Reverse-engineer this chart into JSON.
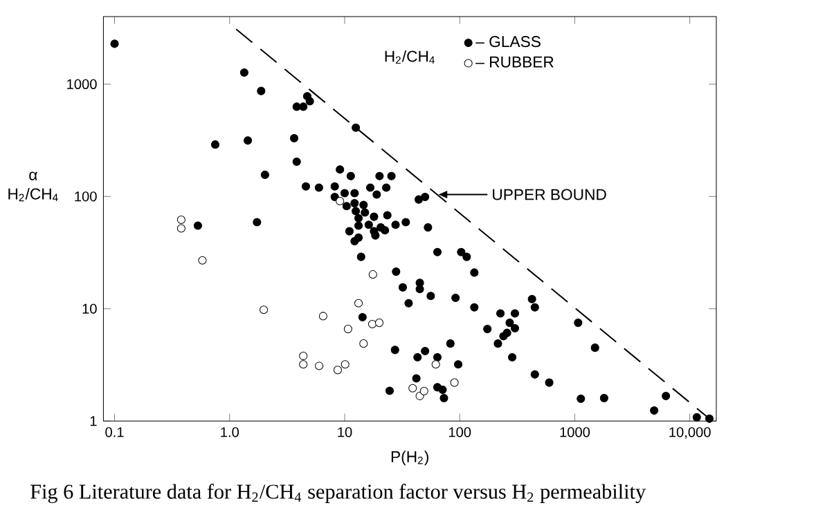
{
  "chart_data": {
    "type": "scatter",
    "xlabel": "P(H$_{2}$)",
    "ylabel": "α H$_{2}$/CH$_{4}$",
    "log": "xy",
    "marker": "circle",
    "legend": "top right",
    "xlim": [
      0.08,
      17000
    ],
    "ylim": [
      1,
      4000
    ],
    "xticks": [
      {
        "value": 0.1,
        "label": "0.1"
      },
      {
        "value": 1,
        "label": "1.0"
      },
      10,
      100,
      1000,
      {
        "value": 10000,
        "label": "10,000"
      }
    ],
    "yticks": [
      1,
      10,
      100,
      1000
    ],
    "series": [
      {
        "name": "– GLASS",
        "color": "#000000",
        "x": [
          0.1,
          1.34,
          1.88,
          0.75,
          1.44,
          2.03,
          0.53,
          1.73,
          3.83,
          4.37,
          4.73,
          4.98,
          3.64,
          3.83,
          4.6,
          5.98,
          12.5,
          8.2,
          9.1,
          11.3,
          10,
          12.2,
          8.2,
          16.7,
          20.1,
          25.5,
          23,
          19,
          12.2,
          10.4,
          14.6,
          12.5,
          15,
          13.2,
          18,
          23.5,
          11,
          13.2,
          16.2,
          18,
          20.6,
          22.4,
          18.5,
          27.7,
          34,
          13.2,
          12.2,
          13.9,
          44,
          50,
          53,
          64,
          103,
          115,
          134,
          45,
          45,
          56,
          36,
          92,
          134,
          174,
          226,
          302,
          272,
          302,
          258,
          240,
          215,
          286,
          425,
          450,
          1070,
          1500,
          450,
          600,
          1130,
          1800,
          6200,
          4900,
          11500,
          14800,
          83,
          50,
          43,
          64,
          97,
          42,
          64,
          71,
          73,
          14.3,
          24.6,
          27.4,
          28,
          32
        ],
        "values": [
          2290,
          1270,
          870,
          290,
          315,
          156,
          55,
          59,
          630,
          630,
          780,
          705,
          330,
          204,
          123,
          120,
          410,
          123,
          174,
          152,
          107,
          107,
          99,
          120,
          152,
          152,
          120,
          104,
          87,
          82,
          84,
          74,
          72,
          64,
          66,
          68,
          49,
          55,
          56,
          49,
          53,
          50,
          45,
          56,
          59,
          43,
          40,
          29,
          94,
          99,
          53,
          32,
          32,
          29,
          21,
          17,
          15,
          13,
          11.2,
          12.5,
          10.3,
          6.6,
          9.1,
          9.1,
          7.5,
          6.7,
          6.1,
          5.7,
          4.9,
          3.7,
          12.2,
          10.3,
          7.5,
          4.5,
          2.6,
          2.2,
          1.58,
          1.6,
          1.67,
          1.24,
          1.08,
          1.05,
          4.9,
          4.2,
          3.7,
          3.7,
          3.2,
          2.4,
          2.0,
          1.9,
          1.6,
          8.4,
          1.86,
          4.3,
          21.4,
          15.5
        ]
      },
      {
        "name": "– RUBBER",
        "color": "#ffffff",
        "x": [
          0.38,
          0.38,
          9.1,
          0.58,
          1.98,
          4.37,
          4.37,
          6.0,
          8.7,
          10.1,
          6.5,
          10.7,
          13.2,
          14.6,
          17.4,
          20,
          17.6,
          62,
          39,
          45,
          49,
          90
        ],
        "values": [
          62,
          52,
          91,
          27,
          9.8,
          3.8,
          3.2,
          3.1,
          2.85,
          3.2,
          8.6,
          6.6,
          11.2,
          4.9,
          7.3,
          7.5,
          20.2,
          3.2,
          1.96,
          1.67,
          1.85,
          2.2
        ]
      },
      {
        "type": "line",
        "color": "#000000",
        "line_style": "dashed",
        "marker": "none",
        "x": [
          1.14,
          14800
        ],
        "values": [
          3090,
          1.05
        ]
      }
    ],
    "annotations": [
      "H$_{2}$/CH$_{4}$",
      "UPPER BOUND",
      "Fig 6 Literature data for H$_{2}$/CH$_{4}$ separation factor versus H$_{2}$ permeability"
    ]
  }
}
